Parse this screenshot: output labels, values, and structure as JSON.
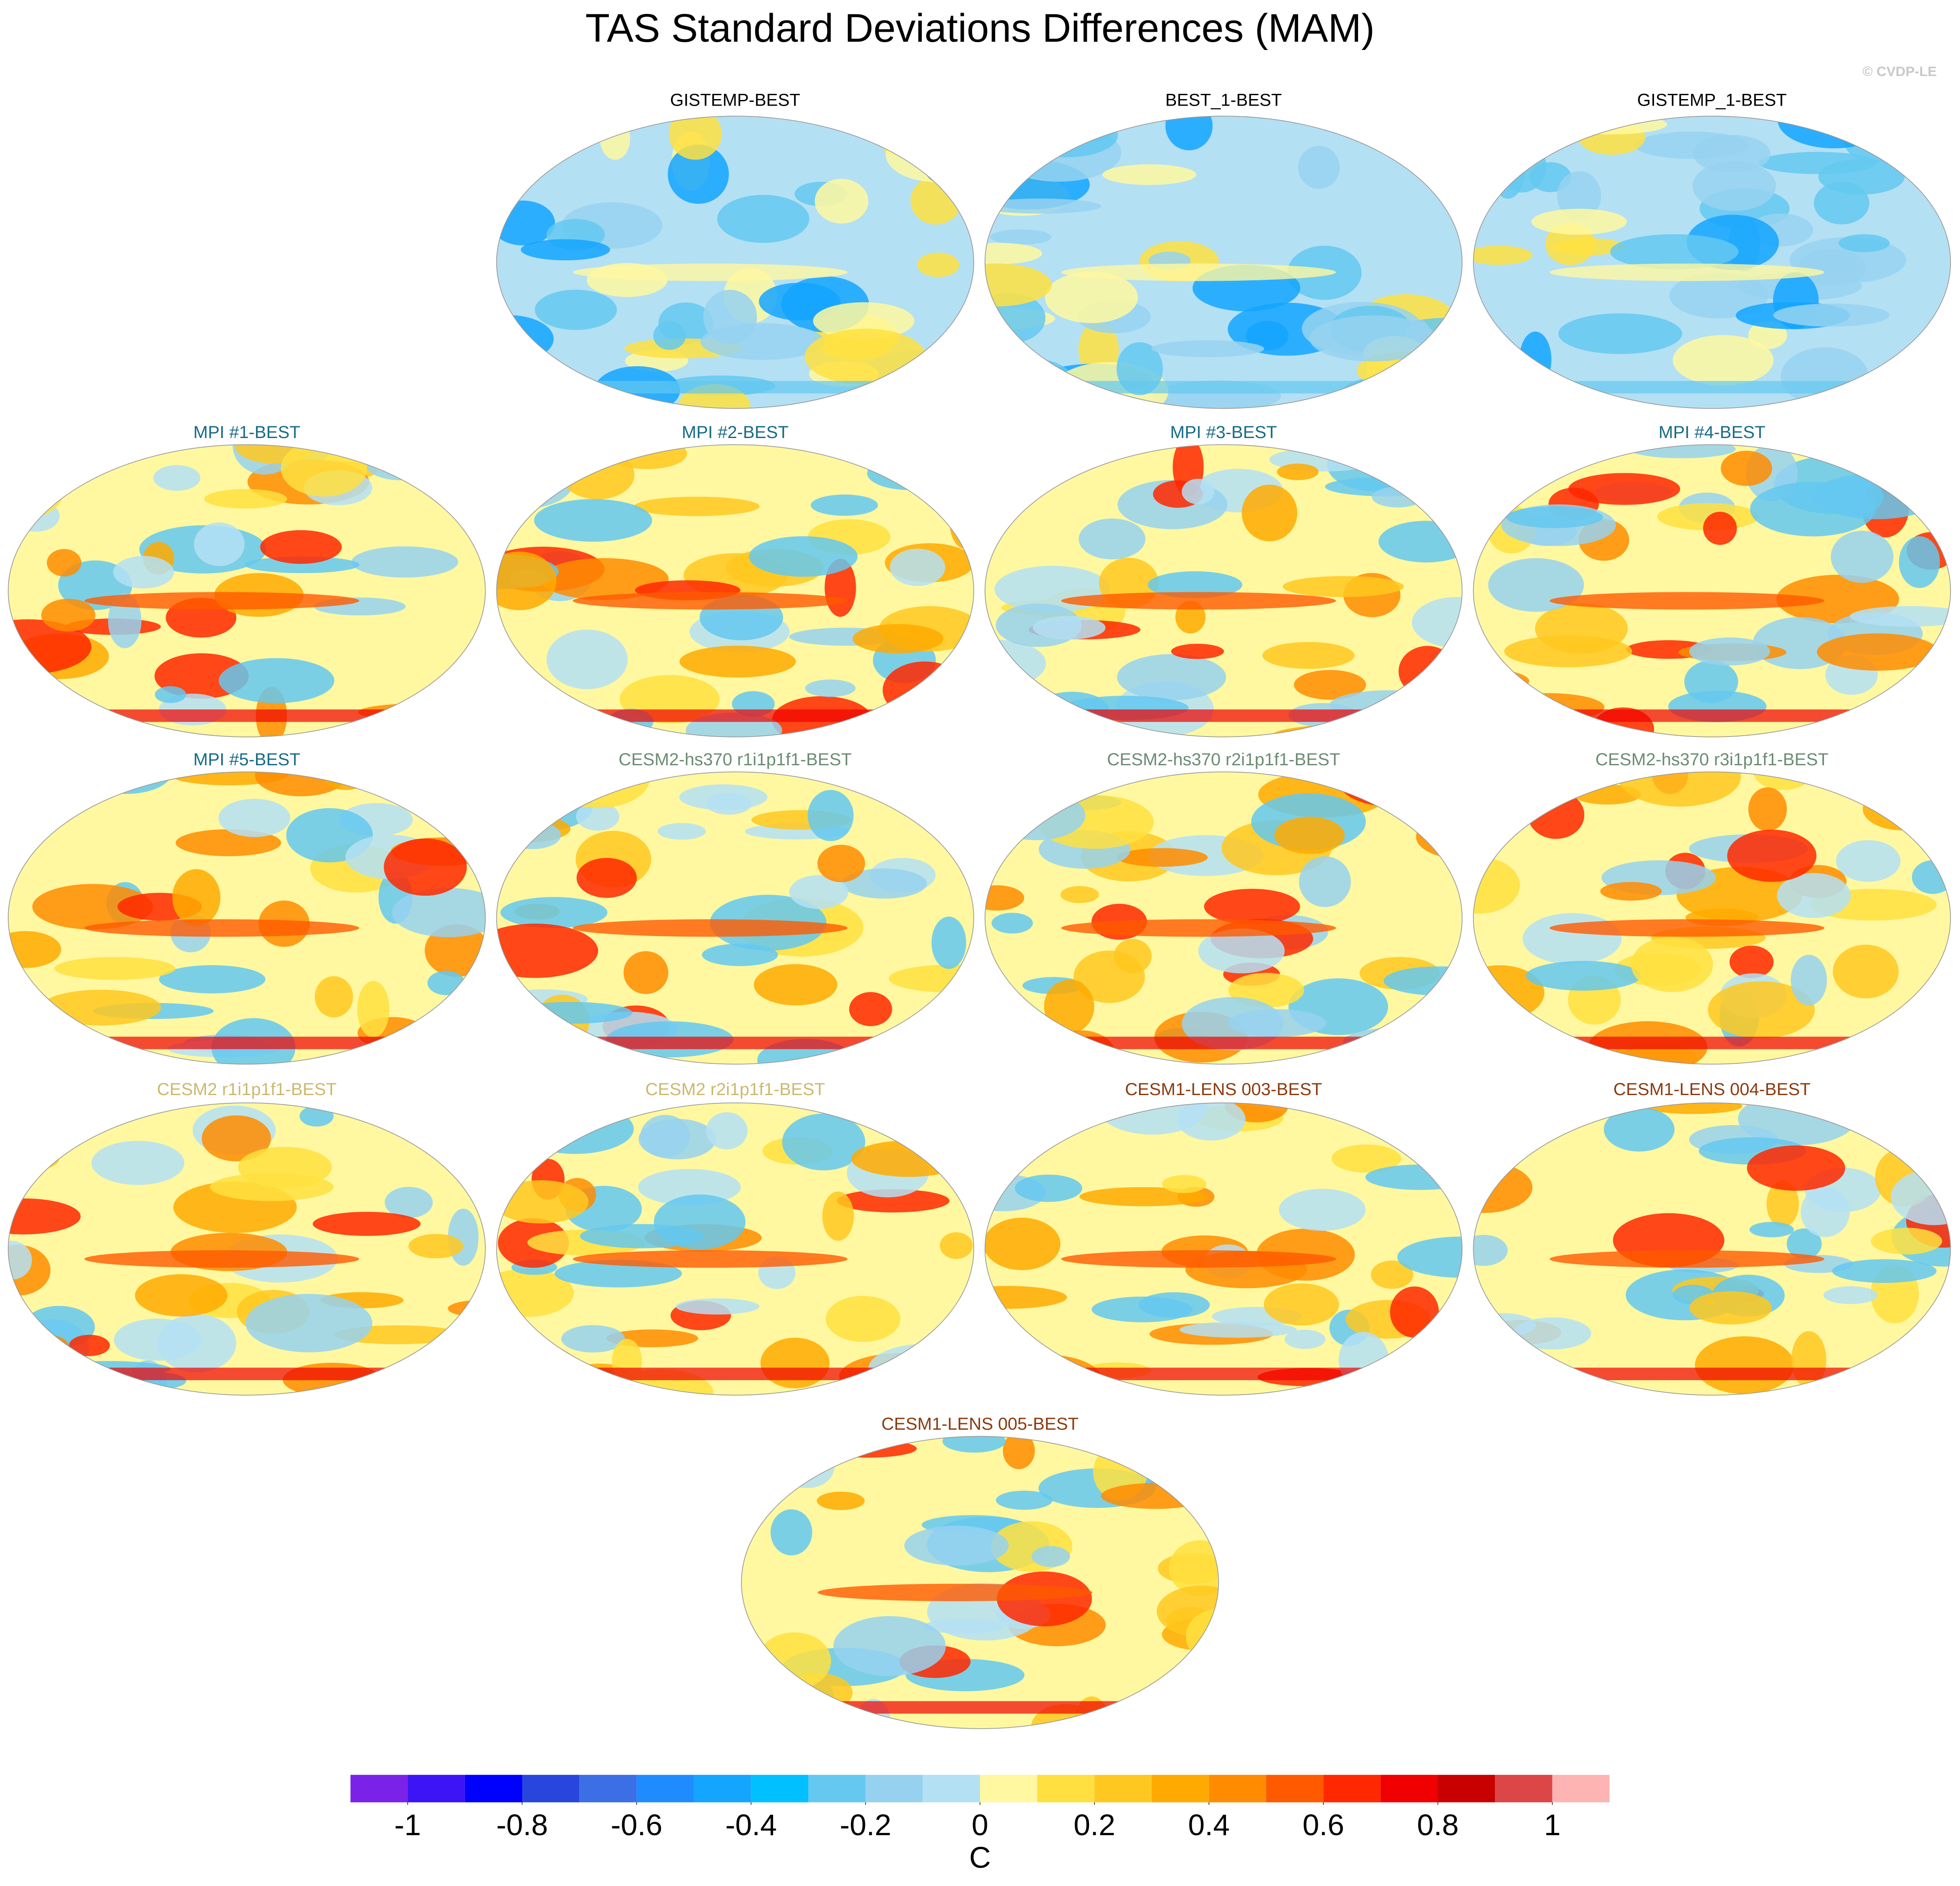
{
  "chart_data": {
    "type": "map-panels",
    "title": "TAS Standard Deviations Differences (MAM)",
    "credit": "© CVDP-LE",
    "panels": [
      {
        "title": "GISTEMP-BEST",
        "title_color": "#000000"
      },
      {
        "title": "BEST_1-BEST",
        "title_color": "#000000"
      },
      {
        "title": "GISTEMP_1-BEST",
        "title_color": "#000000"
      },
      {
        "title": "MPI #1-BEST",
        "title_color": "#176b87"
      },
      {
        "title": "MPI #2-BEST",
        "title_color": "#176b87"
      },
      {
        "title": "MPI #3-BEST",
        "title_color": "#176b87"
      },
      {
        "title": "MPI #4-BEST",
        "title_color": "#176b87"
      },
      {
        "title": "MPI #5-BEST",
        "title_color": "#176b87"
      },
      {
        "title": "CESM2-hs370 r1i1p1f1-BEST",
        "title_color": "#6b8c72"
      },
      {
        "title": "CESM2-hs370 r2i1p1f1-BEST",
        "title_color": "#6b8c72"
      },
      {
        "title": "CESM2-hs370 r3i1p1f1-BEST",
        "title_color": "#6b8c72"
      },
      {
        "title": "CESM2 r1i1p1f1-BEST",
        "title_color": "#cdb86e"
      },
      {
        "title": "CESM2 r2i1p1f1-BEST",
        "title_color": "#cdb86e"
      },
      {
        "title": "CESM1-LENS 003-BEST",
        "title_color": "#8b3a0f"
      },
      {
        "title": "CESM1-LENS 004-BEST",
        "title_color": "#8b3a0f"
      },
      {
        "title": "CESM1-LENS 005-BEST",
        "title_color": "#8b3a0f"
      }
    ],
    "colorbar": {
      "label": "C",
      "boundaries": [
        -1,
        -0.9,
        -0.8,
        -0.7,
        -0.6,
        -0.5,
        -0.4,
        -0.3,
        -0.2,
        -0.1,
        0,
        0.1,
        0.2,
        0.3,
        0.4,
        0.5,
        0.6,
        0.7,
        0.8,
        0.9,
        1
      ],
      "ticks": [
        -1,
        -0.8,
        -0.6,
        -0.4,
        -0.2,
        0,
        0.2,
        0.4,
        0.6,
        0.8,
        1
      ],
      "colors": [
        "#7b22e8",
        "#3c14f5",
        "#0000ff",
        "#2846dc",
        "#3c6ee6",
        "#1e8cff",
        "#14a5ff",
        "#00c0ff",
        "#64c8f0",
        "#96d2f0",
        "#b4e0f4",
        "#fff8a0",
        "#ffe040",
        "#ffc820",
        "#ffaa00",
        "#ff8c00",
        "#ff5a00",
        "#ff2800",
        "#f00000",
        "#c80000",
        "#dc4646",
        "#ffb4b4"
      ]
    }
  }
}
